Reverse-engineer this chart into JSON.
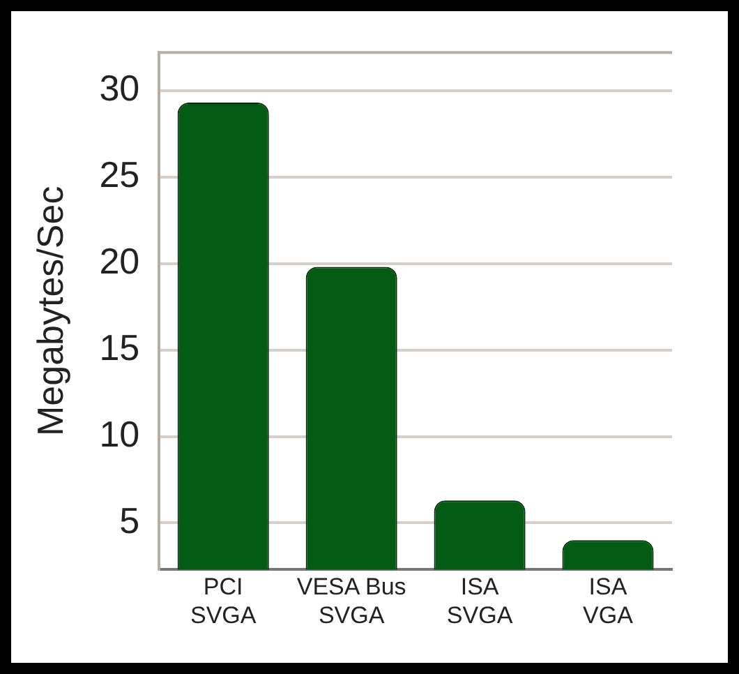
{
  "chart_data": {
    "type": "bar",
    "ylabel": "Megabytes/Sec",
    "categories": [
      "PCI\nSVGA",
      "VESA Bus\nSVGA",
      "ISA\nSVGA",
      "ISA\nVGA"
    ],
    "values": [
      29.3,
      19.8,
      6.3,
      4.0
    ],
    "color": "#035a12",
    "ylim": [
      2.3,
      32.2
    ],
    "yticks": [
      5,
      10,
      15,
      20,
      25,
      30
    ],
    "grid": "y",
    "legend": false
  }
}
